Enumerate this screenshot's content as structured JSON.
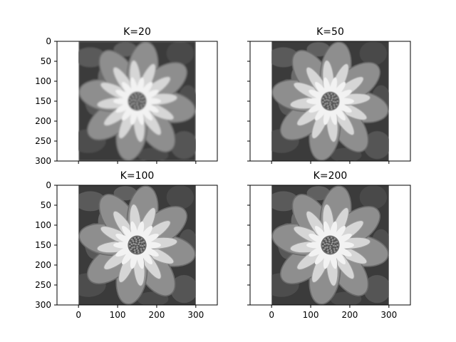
{
  "chart_data": [
    {
      "type": "image",
      "title": "K=20",
      "xlim": [
        -55,
        355
      ],
      "ylim": [
        300,
        0
      ],
      "image_extent": [
        0,
        300,
        300,
        0
      ],
      "yticks": [
        0,
        50,
        100,
        150,
        200,
        250,
        300
      ],
      "ytick_labels": [
        "0",
        "50",
        "100",
        "150",
        "200",
        "250",
        "300"
      ],
      "xticks": [
        0,
        100,
        200,
        300
      ],
      "xtick_labels": [],
      "colormap": "gray",
      "blur": 1.8
    },
    {
      "type": "image",
      "title": "K=50",
      "xlim": [
        -55,
        355
      ],
      "ylim": [
        300,
        0
      ],
      "image_extent": [
        0,
        300,
        300,
        0
      ],
      "yticks": [
        0,
        50,
        100,
        150,
        200,
        250,
        300
      ],
      "ytick_labels": [],
      "xticks": [
        0,
        100,
        200,
        300
      ],
      "xtick_labels": [],
      "colormap": "gray",
      "blur": 0.9
    },
    {
      "type": "image",
      "title": "K=100",
      "xlim": [
        -55,
        355
      ],
      "ylim": [
        300,
        0
      ],
      "image_extent": [
        0,
        300,
        300,
        0
      ],
      "yticks": [
        0,
        50,
        100,
        150,
        200,
        250,
        300
      ],
      "ytick_labels": [
        "0",
        "50",
        "100",
        "150",
        "200",
        "250",
        "300"
      ],
      "xticks": [
        0,
        100,
        200,
        300
      ],
      "xtick_labels": [
        "0",
        "100",
        "200",
        "300"
      ],
      "colormap": "gray",
      "blur": 0.4
    },
    {
      "type": "image",
      "title": "K=200",
      "xlim": [
        -55,
        355
      ],
      "ylim": [
        300,
        0
      ],
      "image_extent": [
        0,
        300,
        300,
        0
      ],
      "yticks": [
        0,
        50,
        100,
        150,
        200,
        250,
        300
      ],
      "ytick_labels": [],
      "xticks": [
        0,
        100,
        200,
        300
      ],
      "xtick_labels": [
        "0",
        "100",
        "200",
        "300"
      ],
      "colormap": "gray",
      "blur": 0.2
    }
  ]
}
